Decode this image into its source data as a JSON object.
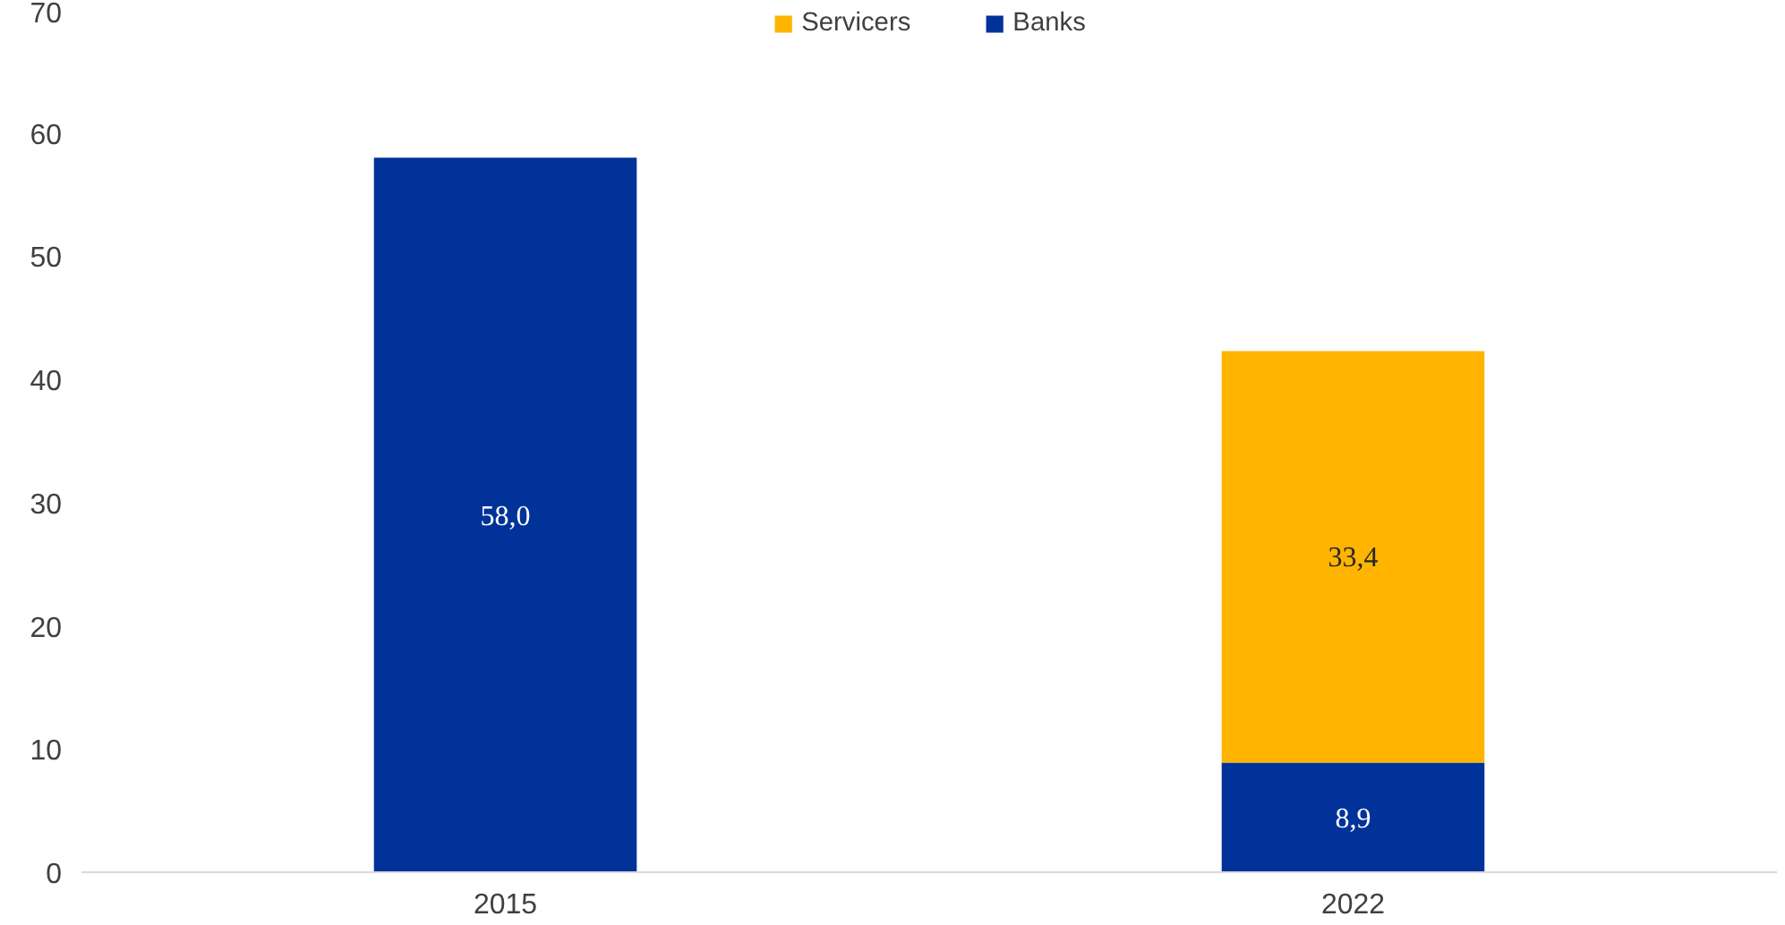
{
  "chart_data": {
    "type": "bar",
    "stacked": true,
    "categories": [
      "2015",
      "2022"
    ],
    "series": [
      {
        "name": "Banks",
        "color": "#003299",
        "values": [
          58.0,
          8.9
        ],
        "value_labels": [
          "58,0",
          "8,9"
        ]
      },
      {
        "name": "Servicers",
        "color": "#ffb400",
        "values": [
          null,
          33.4
        ],
        "value_labels": [
          null,
          "33,4"
        ]
      }
    ],
    "ylim": [
      0,
      70
    ],
    "yticks": [
      0,
      10,
      20,
      30,
      40,
      50,
      60,
      70
    ],
    "grid": false,
    "legend": "top"
  }
}
